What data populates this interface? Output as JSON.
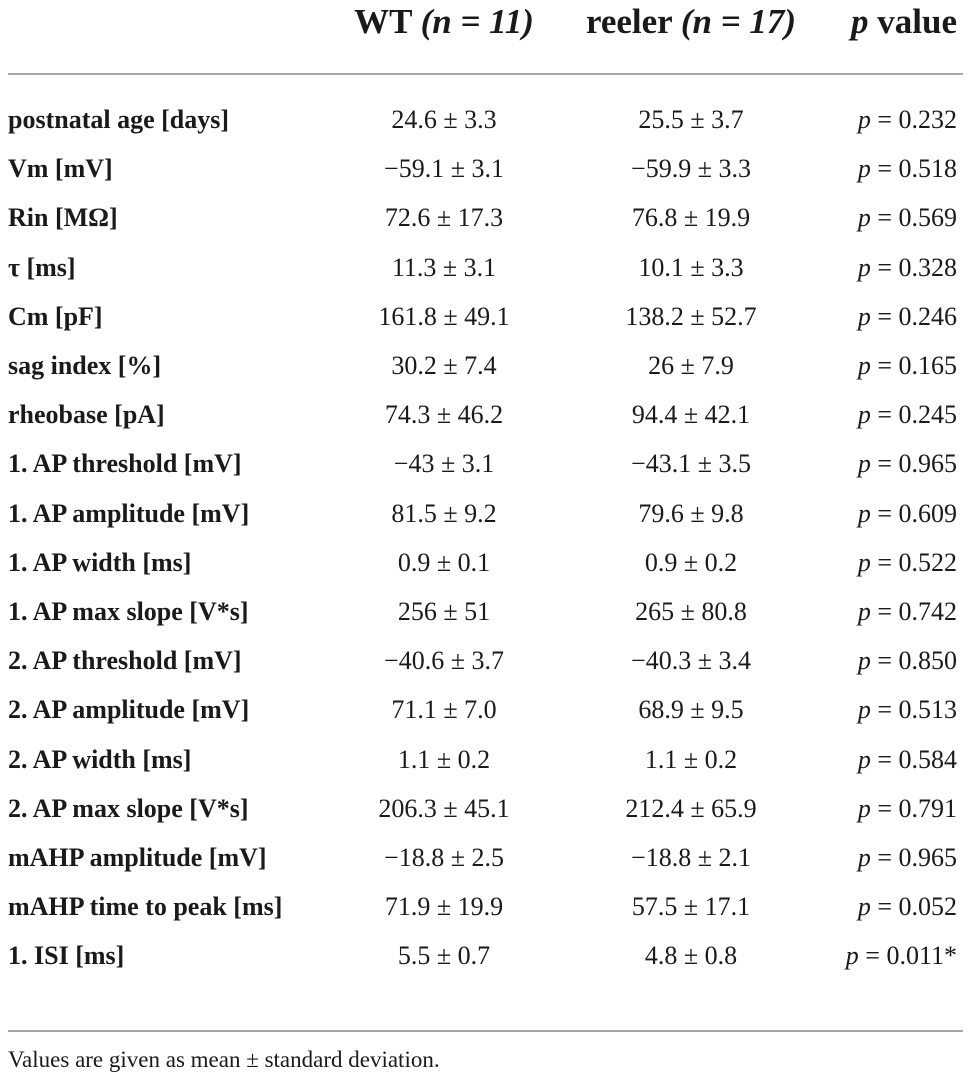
{
  "header": {
    "col_wt_name": "WT",
    "col_wt_n": "(n = 11)",
    "col_reeler_name": "reeler",
    "col_reeler_n": "(n = 17)",
    "col_p_italic": "p",
    "col_p_rest": " value"
  },
  "rows": [
    {
      "label": "postnatal age [days]",
      "wt": "24.6 ± 3.3",
      "reeler": "25.5 ± 3.7",
      "p_sym": "p",
      "p": " = 0.232"
    },
    {
      "label": "Vm [mV]",
      "wt": "−59.1 ± 3.1",
      "reeler": "−59.9 ± 3.3",
      "p_sym": "p",
      "p": " = 0.518"
    },
    {
      "label": "Rin [MΩ]",
      "wt": "72.6 ± 17.3",
      "reeler": "76.8 ± 19.9",
      "p_sym": "p",
      "p": " = 0.569"
    },
    {
      "label": "τ [ms]",
      "wt": "11.3 ± 3.1",
      "reeler": "10.1 ± 3.3",
      "p_sym": "p",
      "p": " = 0.328"
    },
    {
      "label": "Cm [pF]",
      "wt": "161.8 ± 49.1",
      "reeler": "138.2 ± 52.7",
      "p_sym": "p",
      "p": " = 0.246"
    },
    {
      "label": "sag index [%]",
      "wt": "30.2 ± 7.4",
      "reeler": "26 ± 7.9",
      "p_sym": "p",
      "p": " = 0.165"
    },
    {
      "label": "rheobase [pA]",
      "wt": "74.3 ± 46.2",
      "reeler": "94.4 ± 42.1",
      "p_sym": "p",
      "p": " = 0.245"
    },
    {
      "label": "1. AP threshold [mV]",
      "wt": "−43 ± 3.1",
      "reeler": "−43.1 ± 3.5",
      "p_sym": "p",
      "p": " = 0.965"
    },
    {
      "label": "1. AP amplitude [mV]",
      "wt": "81.5 ± 9.2",
      "reeler": "79.6 ± 9.8",
      "p_sym": "p",
      "p": " = 0.609"
    },
    {
      "label": "1. AP width [ms]",
      "wt": "0.9 ± 0.1",
      "reeler": "0.9 ± 0.2",
      "p_sym": "p",
      "p": " = 0.522"
    },
    {
      "label": "1. AP max slope [V*s]",
      "wt": "256 ± 51",
      "reeler": "265 ± 80.8",
      "p_sym": "p",
      "p": " = 0.742"
    },
    {
      "label": "2. AP threshold [mV]",
      "wt": "−40.6 ± 3.7",
      "reeler": "−40.3 ± 3.4",
      "p_sym": "p",
      "p": " = 0.850"
    },
    {
      "label": "2. AP amplitude [mV]",
      "wt": "71.1 ± 7.0",
      "reeler": "68.9 ± 9.5",
      "p_sym": "p",
      "p": " = 0.513"
    },
    {
      "label": "2. AP width [ms]",
      "wt": "1.1 ± 0.2",
      "reeler": "1.1 ± 0.2",
      "p_sym": "p",
      "p": " = 0.584"
    },
    {
      "label": "2. AP max slope [V*s]",
      "wt": "206.3 ± 45.1",
      "reeler": "212.4 ± 65.9",
      "p_sym": "p",
      "p": " = 0.791"
    },
    {
      "label": "mAHP amplitude [mV]",
      "wt": "−18.8 ± 2.5",
      "reeler": "−18.8 ± 2.1",
      "p_sym": "p",
      "p": " = 0.965"
    },
    {
      "label": "mAHP time to peak [ms]",
      "wt": "71.9 ± 19.9",
      "reeler": "57.5 ± 17.1",
      "p_sym": "p",
      "p": " = 0.052"
    },
    {
      "label": "1. ISI [ms]",
      "wt": "5.5 ± 0.7",
      "reeler": "4.8 ± 0.8",
      "p_sym": "p",
      "p": " = 0.011*"
    }
  ],
  "footnote": "Values are given as mean ± standard deviation."
}
